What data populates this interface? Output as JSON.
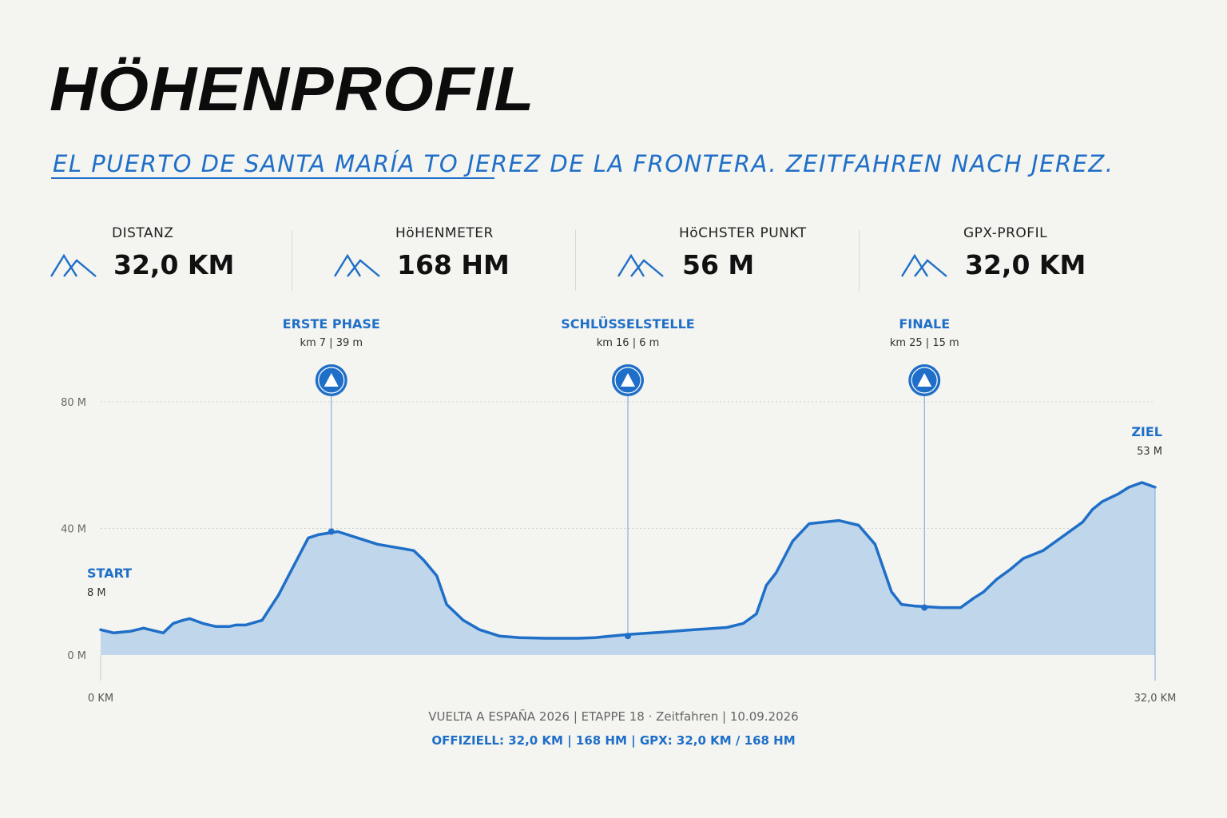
{
  "header": {
    "title": "HÖHENPROFIL",
    "subtitle": "EL PUERTO DE SANTA MARÍA TO JEREZ DE LA FRONTERA. ZEITFAHREN NACH JEREZ."
  },
  "stats": [
    {
      "label": "DISTANZ",
      "value": "32,0 KM"
    },
    {
      "label": "HöHENMETER",
      "value": "168 HM"
    },
    {
      "label": "HöCHSTER PUNKT",
      "value": "56 M"
    },
    {
      "label": "GPX-PROFIL",
      "value": "32,0 KM"
    }
  ],
  "colors": {
    "accent": "#1f6fc8",
    "fill": "#c0d6ea",
    "background": "#f4f4f0"
  },
  "chart_data": {
    "type": "area",
    "xlabel": "",
    "ylabel": "",
    "xlim": [
      0,
      32.0
    ],
    "ylim": [
      0,
      80
    ],
    "yticks": [
      {
        "value": 0,
        "label": "0 M"
      },
      {
        "value": 40,
        "label": "40 M"
      },
      {
        "value": 80,
        "label": "80 M"
      }
    ],
    "xtick_labels": {
      "start": "0 KM",
      "end": "32,0 KM"
    },
    "grid": true,
    "x": [
      0,
      0.4,
      0.9,
      1.3,
      1.5,
      1.9,
      2.2,
      2.5,
      2.7,
      3.1,
      3.5,
      3.9,
      4.1,
      4.4,
      4.9,
      5.4,
      5.7,
      5.9,
      6.3,
      6.6,
      6.9,
      7.2,
      7.8,
      8.4,
      9.5,
      9.8,
      10.2,
      10.5,
      11.0,
      11.5,
      12.1,
      12.7,
      13.5,
      14.5,
      15.0,
      15.5,
      16.0,
      17.0,
      18.0,
      19.0,
      19.5,
      19.9,
      20.2,
      20.5,
      21.0,
      21.5,
      22.4,
      23.0,
      23.5,
      24.0,
      24.3,
      24.7,
      25.0,
      25.5,
      26.1,
      26.5,
      26.8,
      27.2,
      27.6,
      28.0,
      28.6,
      29.2,
      29.8,
      30.1,
      30.4,
      30.9,
      31.2,
      31.6,
      32.0
    ],
    "values": [
      8,
      7,
      7.5,
      8.5,
      8,
      7,
      10,
      11,
      11.5,
      10,
      9,
      9,
      9.5,
      9.5,
      11,
      19,
      25,
      29,
      37,
      38,
      38.5,
      39,
      37,
      35,
      33,
      30,
      25,
      16,
      11,
      8,
      6,
      5.5,
      5.3,
      5.3,
      5.5,
      6,
      6.5,
      7.2,
      8,
      8.7,
      10,
      13,
      22,
      26,
      36,
      41.5,
      42.5,
      41,
      35,
      20,
      16,
      15.5,
      15.3,
      15,
      15,
      18,
      20,
      24,
      27,
      30.5,
      33,
      37.5,
      42,
      46,
      48.5,
      51,
      53,
      54.5,
      53
    ]
  },
  "markers": [
    {
      "name": "ERSTE PHASE",
      "info": "km 7 | 39 m",
      "km": 7.0,
      "elevation": 39
    },
    {
      "name": "SCHLÜSSELSTELLE",
      "info": "km 16 | 6 m",
      "km": 16.0,
      "elevation": 6
    },
    {
      "name": "FINALE",
      "info": "km 25 | 15 m",
      "km": 25.0,
      "elevation": 15
    }
  ],
  "endpoints": {
    "start": {
      "label": "START",
      "info": "8 M"
    },
    "finish": {
      "label": "ZIEL",
      "info": "53 M"
    }
  },
  "footer": {
    "line1": "VUELTA A ESPAÑA 2026 | ETAPPE 18 · Zeitfahren | 10.09.2026",
    "line2": "OFFIZIELL: 32,0 KM | 168 HM | GPX: 32,0 KM / 168 HM"
  }
}
